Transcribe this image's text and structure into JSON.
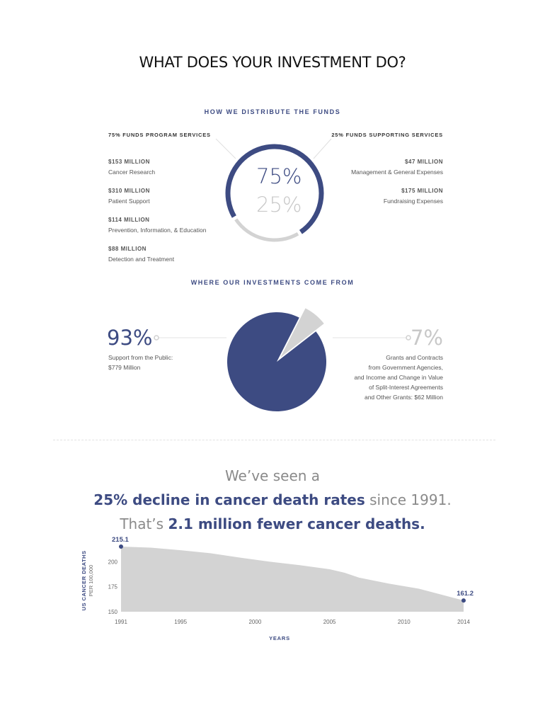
{
  "title": "WHAT DOES YOUR INVESTMENT DO?",
  "colors": {
    "navy": "#3d4b82",
    "gray": "#d3d3d3",
    "text": "#555555"
  },
  "distribution": {
    "heading": "HOW WE DISTRIBUTE THE FUNDS",
    "program": {
      "heading": "75% FUNDS PROGRAM SERVICES",
      "items": [
        {
          "amount": "$153 MILLION",
          "label": "Cancer Research"
        },
        {
          "amount": "$310 MILLION",
          "label": "Patient Support"
        },
        {
          "amount": "$114 MILLION",
          "label": "Prevention, Information, & Education"
        },
        {
          "amount": "$88 MILLION",
          "label": "Detection and Treatment"
        }
      ]
    },
    "supporting": {
      "heading": "25% FUNDS SUPPORTING SERVICES",
      "items": [
        {
          "amount": "$47 MILLION",
          "label": "Management & General Expenses"
        },
        {
          "amount": "$175 MILLION",
          "label": "Fundraising Expenses"
        }
      ]
    },
    "center_primary": "75%",
    "center_secondary": "25%"
  },
  "sources": {
    "heading": "WHERE OUR INVESTMENTS COME FROM",
    "left": {
      "percent": "93%",
      "lines": [
        "Support from the Public:",
        "$779 Million"
      ]
    },
    "right": {
      "percent": "7%",
      "lines": [
        "Grants and Contracts",
        "from Government Agencies,",
        "and Income and Change in Value",
        "of Split-Interest Agreements",
        "and Other Grants: $62 Million"
      ]
    }
  },
  "headline": {
    "line1": "We’ve seen a",
    "line2_bold": "25% decline in cancer death rates",
    "line2_rest": " since 1991.",
    "line3_pre": "That’s ",
    "line3_bold": "2.1 million fewer cancer deaths."
  },
  "chart_data": [
    {
      "type": "pie",
      "title": "HOW WE DISTRIBUTE THE FUNDS",
      "style": "donut",
      "categories": [
        "Program Services",
        "Supporting Services"
      ],
      "values": [
        75,
        25
      ]
    },
    {
      "type": "pie",
      "title": "WHERE OUR INVESTMENTS COME FROM",
      "categories": [
        "Support from the Public",
        "Grants, Contracts and Other"
      ],
      "values": [
        93,
        7
      ]
    },
    {
      "type": "area",
      "ylabel": "US CANCER DEATHS",
      "ylabel_sub": "PER 100,000",
      "xlabel": "YEARS",
      "ylim": [
        150,
        215.1
      ],
      "yticks": [
        150,
        175,
        200
      ],
      "xticks": [
        1991,
        1995,
        2000,
        2005,
        2010,
        2014
      ],
      "x": [
        1991,
        1993,
        1995,
        1997,
        1999,
        2001,
        2003,
        2005,
        2006,
        2007,
        2009,
        2011,
        2014
      ],
      "y": [
        215.1,
        214,
        211.5,
        208.5,
        204,
        200,
        196.5,
        192.5,
        189,
        184,
        178,
        173,
        161.2
      ],
      "annotations": [
        {
          "x": 1991,
          "y": 215.1,
          "label": "215.1"
        },
        {
          "x": 2014,
          "y": 161.2,
          "label": "161.2"
        }
      ]
    }
  ]
}
